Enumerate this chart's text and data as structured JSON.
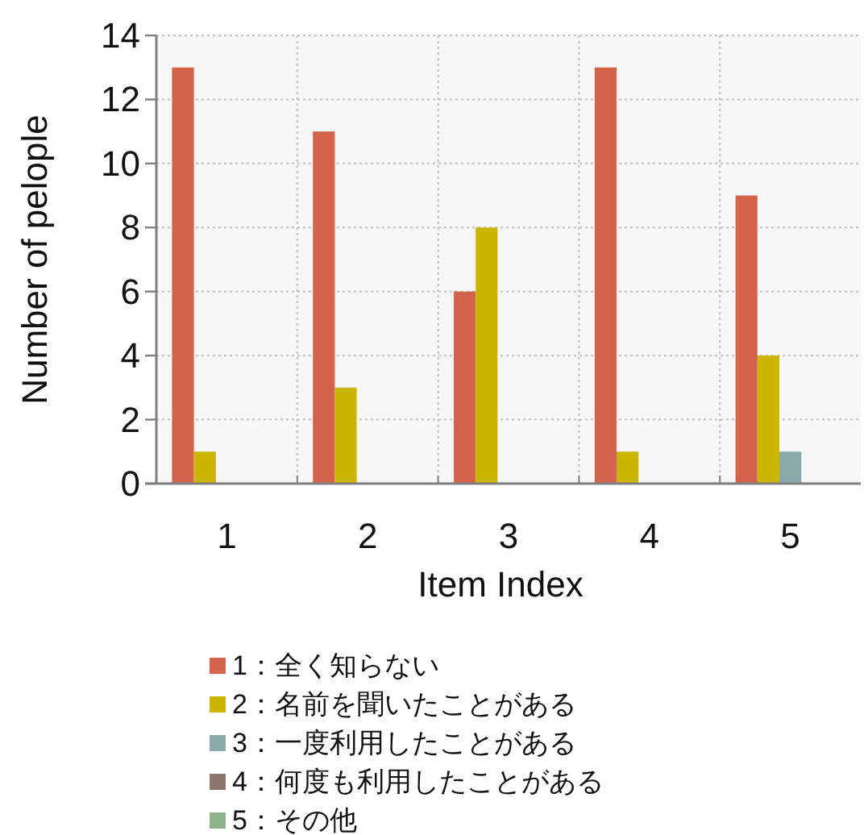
{
  "chart_data": {
    "type": "bar",
    "xlabel": "Item Index",
    "ylabel": "Number of pelople",
    "categories": [
      "1",
      "2",
      "3",
      "4",
      "5"
    ],
    "series": [
      {
        "name": "1：全く知らない",
        "color": "#d4634b",
        "values": [
          13,
          11,
          6,
          13,
          9
        ]
      },
      {
        "name": "2：名前を聞いたことがある",
        "color": "#ccb500",
        "values": [
          1,
          3,
          8,
          1,
          4
        ]
      },
      {
        "name": "3：一度利用したことがある",
        "color": "#88aaab",
        "values": [
          0,
          0,
          0,
          0,
          1
        ]
      },
      {
        "name": "4：何度も利用したことがある",
        "color": "#8b766b",
        "values": [
          0,
          0,
          0,
          0,
          0
        ]
      },
      {
        "name": "5：その他",
        "color": "#8fb38a",
        "values": [
          0,
          0,
          0,
          0,
          0
        ]
      }
    ],
    "ylim": [
      0,
      14
    ],
    "yticks": [
      0,
      2,
      4,
      6,
      8,
      10,
      12,
      14
    ],
    "grid": true,
    "legend": "bottom"
  }
}
